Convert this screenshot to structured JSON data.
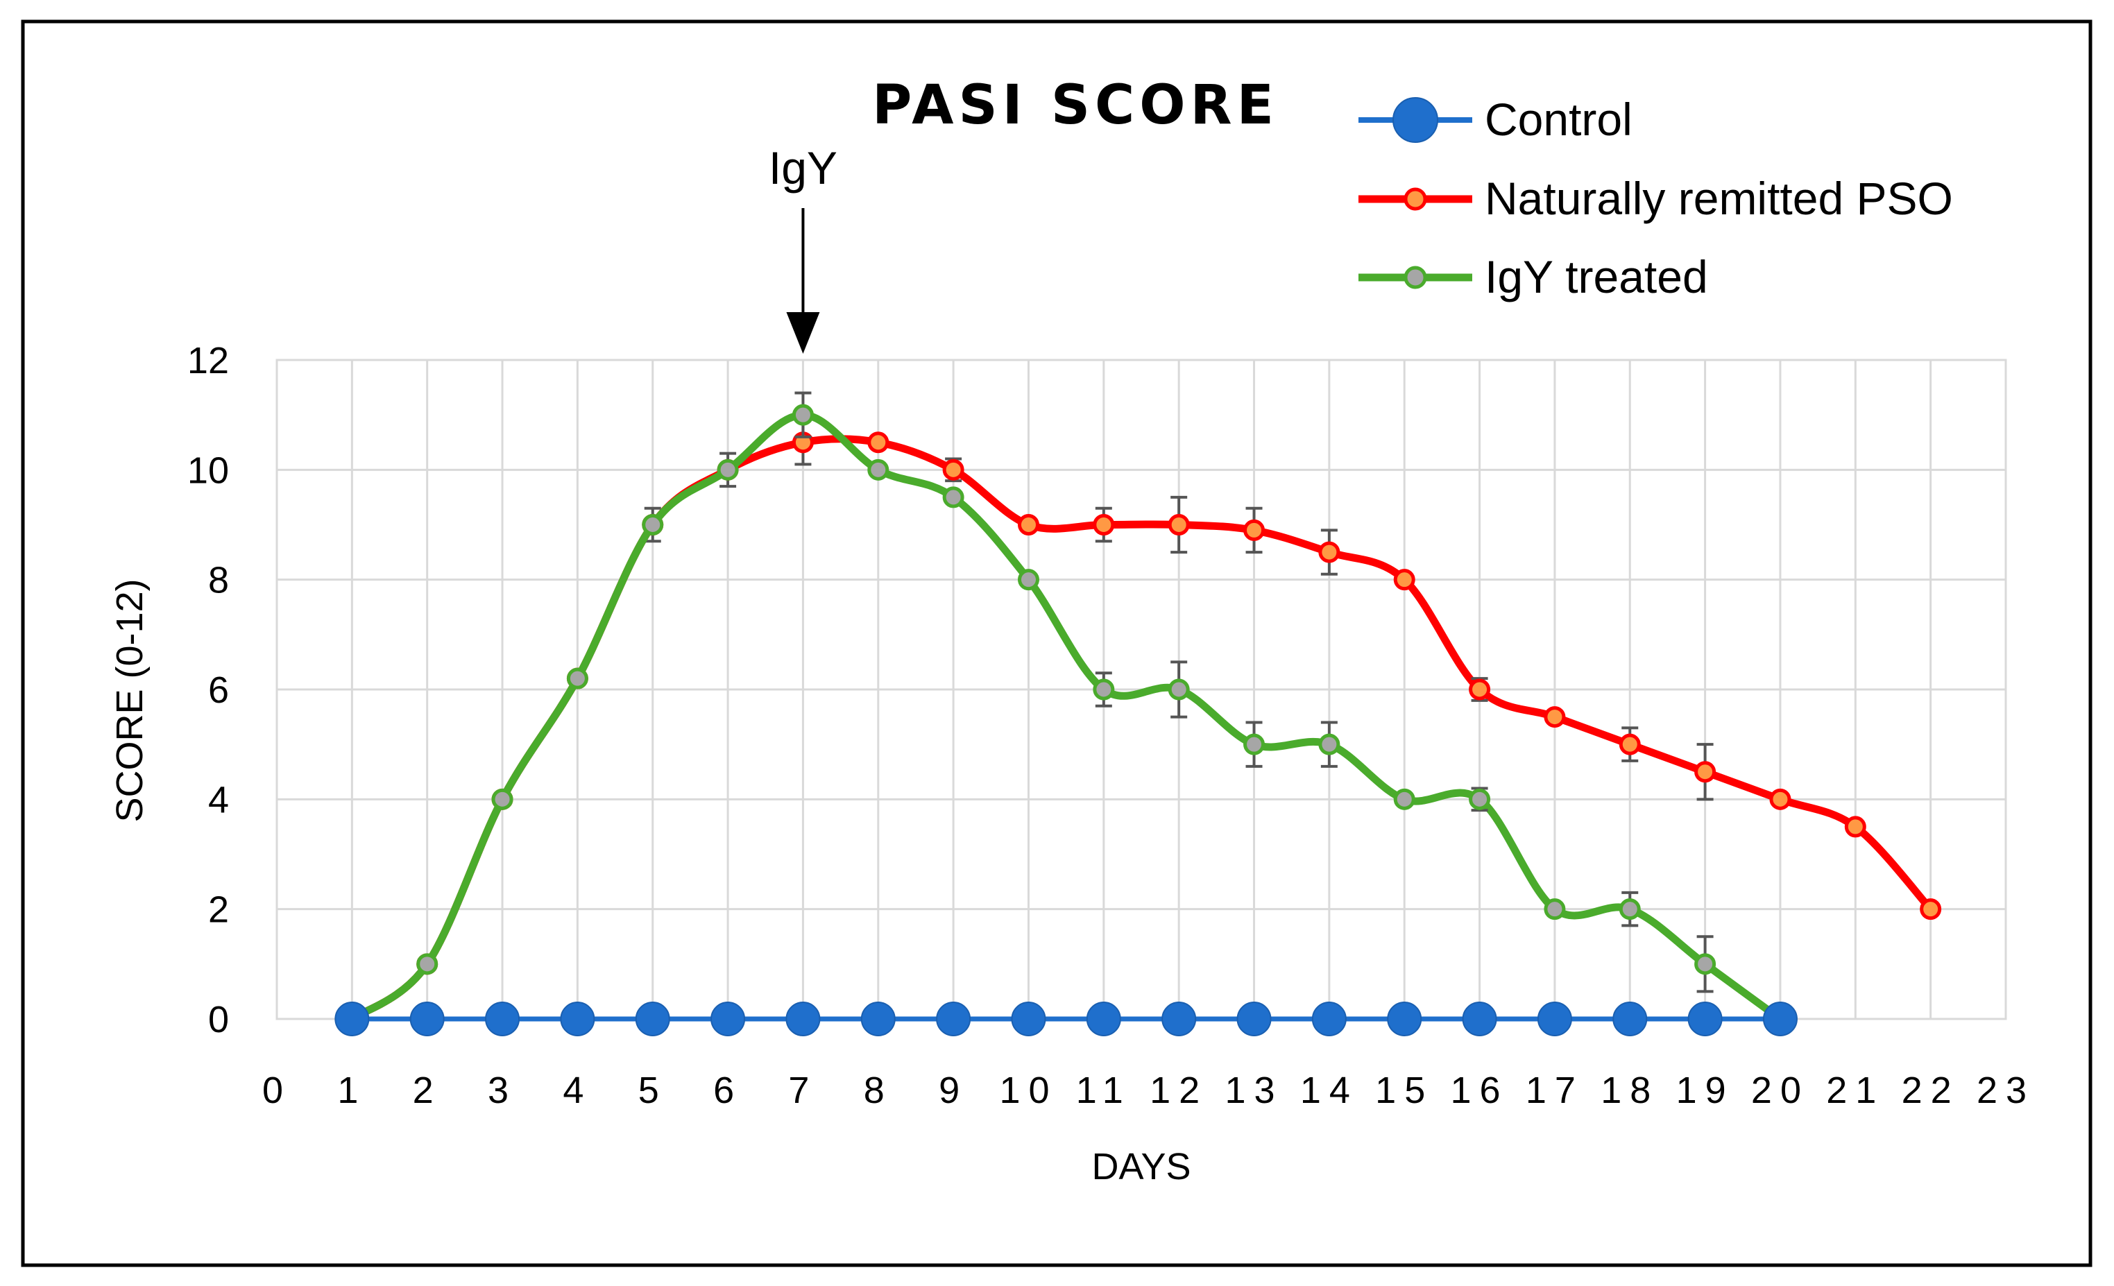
{
  "chart_data": {
    "type": "line",
    "title": "PASI SCORE",
    "xlabel": "DAYS",
    "ylabel": "SCORE (0-12)",
    "xlim": [
      0,
      23
    ],
    "ylim": [
      0,
      12
    ],
    "x_ticks": [
      0,
      1,
      2,
      3,
      4,
      5,
      6,
      7,
      8,
      9,
      10,
      11,
      12,
      13,
      14,
      15,
      16,
      17,
      18,
      19,
      20,
      21,
      22,
      23
    ],
    "y_ticks": [
      0,
      2,
      4,
      6,
      8,
      10,
      12
    ],
    "grid": true,
    "legend_position": "top-right",
    "annotation": {
      "text": "IgY",
      "x": 7
    },
    "series": [
      {
        "name": "Control",
        "color": "#1f6fcc",
        "marker_fill": "#1f6fcc",
        "x": [
          1,
          2,
          3,
          4,
          5,
          6,
          7,
          8,
          9,
          10,
          11,
          12,
          13,
          14,
          15,
          16,
          17,
          18,
          19,
          20
        ],
        "values": [
          0,
          0,
          0,
          0,
          0,
          0,
          0,
          0,
          0,
          0,
          0,
          0,
          0,
          0,
          0,
          0,
          0,
          0,
          0,
          0
        ],
        "errors": []
      },
      {
        "name": "Naturally remitted PSO",
        "color": "#ff0000",
        "marker_fill": "#ff9944",
        "x": [
          1,
          2,
          3,
          4,
          5,
          6,
          7,
          8,
          9,
          10,
          11,
          12,
          13,
          14,
          15,
          16,
          17,
          18,
          19,
          20,
          21,
          22
        ],
        "values": [
          0,
          1,
          4,
          6.2,
          9,
          10,
          10.5,
          10.5,
          10,
          9,
          9,
          9,
          8.9,
          8.5,
          8,
          6,
          5.5,
          5,
          4.5,
          4,
          3.5,
          2
        ],
        "errors": [
          0,
          0,
          0,
          0,
          0.3,
          0.3,
          0.4,
          0,
          0.2,
          0,
          0.3,
          0.5,
          0.4,
          0.4,
          0,
          0.2,
          0,
          0.3,
          0.5,
          0,
          0,
          0
        ]
      },
      {
        "name": "IgY treated",
        "color": "#4aab2c",
        "marker_fill": "#a6a6a6",
        "x": [
          1,
          2,
          3,
          4,
          5,
          6,
          7,
          8,
          9,
          10,
          11,
          12,
          13,
          14,
          15,
          16,
          17,
          18,
          19,
          20
        ],
        "values": [
          0,
          1,
          4,
          6.2,
          9,
          10,
          11,
          10,
          9.5,
          8,
          6,
          6,
          5,
          5,
          4,
          4,
          2,
          2,
          1,
          0
        ],
        "errors": [
          0,
          0,
          0,
          0,
          0,
          0,
          0.4,
          0,
          0,
          0,
          0.3,
          0.5,
          0.4,
          0.4,
          0,
          0.2,
          0,
          0.3,
          0.5,
          0
        ]
      }
    ]
  }
}
